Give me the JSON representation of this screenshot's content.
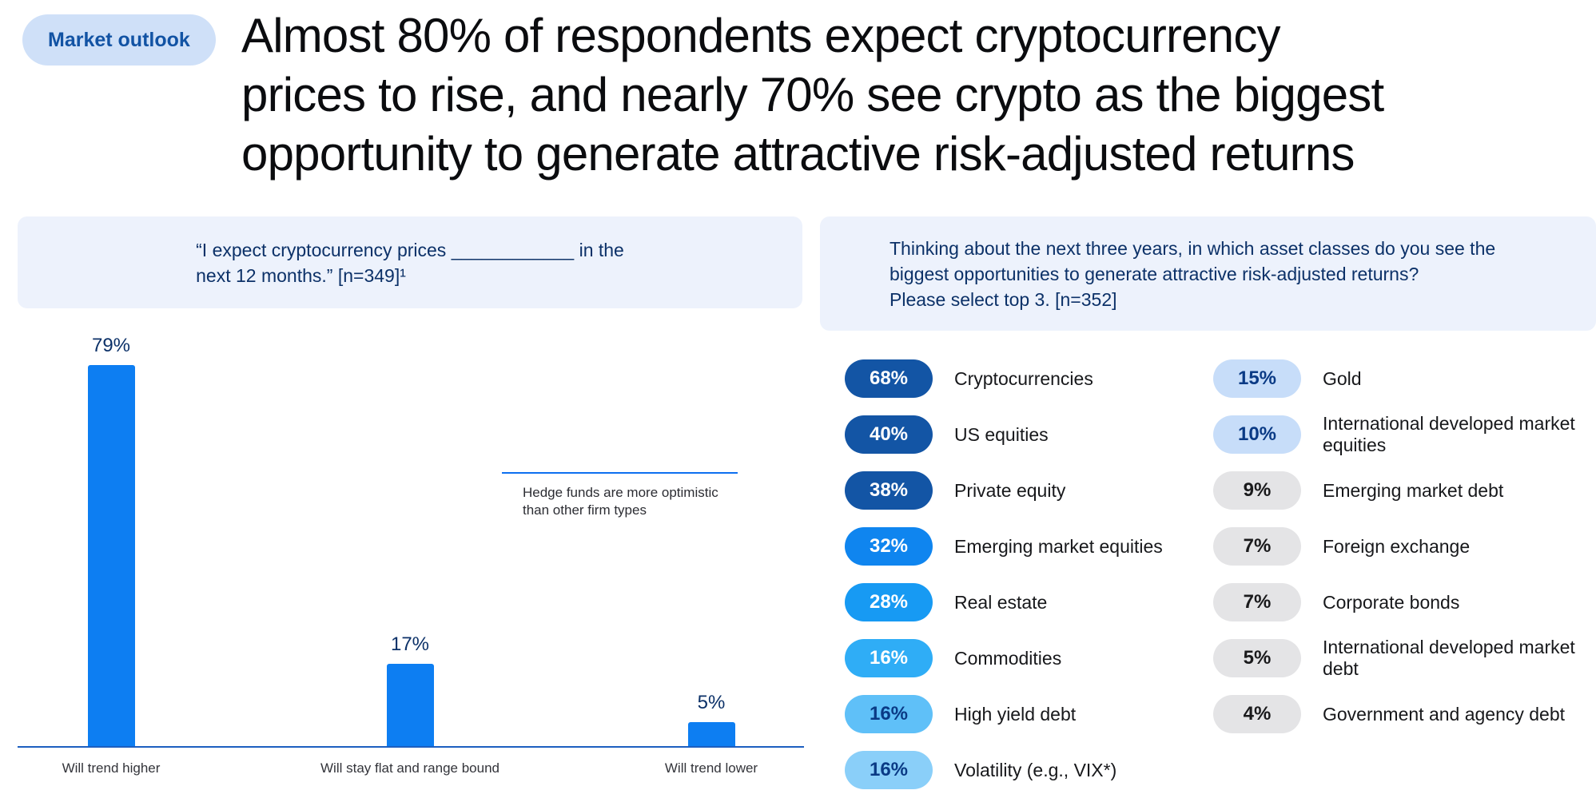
{
  "badge": {
    "label": "Market outlook"
  },
  "headline": {
    "lines": [
      "Almost 80% of respondents expect cryptocurrency",
      "prices to rise, and nearly 70% see crypto as the biggest",
      "opportunity to generate attractive risk-adjusted returns"
    ]
  },
  "left_panel": {
    "question_lines": [
      "“I expect cryptocurrency prices ____________ in the",
      "next 12 months.” [n=349]¹"
    ],
    "bars": [
      {
        "label": "Will trend higher",
        "value": 79,
        "value_label": "79%"
      },
      {
        "label": "Will stay flat and range bound",
        "value": 17,
        "value_label": "17%"
      },
      {
        "label": "Will trend lower",
        "value": 5,
        "value_label": "5%"
      }
    ],
    "annotation_lines": [
      "Hedge funds are more optimistic",
      "than other firm types"
    ]
  },
  "right_panel": {
    "question_lines": [
      "Thinking about the next three years, in which asset classes do you see the",
      "biggest opportunities to generate attractive risk-adjusted returns?",
      "Please select top 3. [n=352]"
    ],
    "columns": [
      [
        {
          "pct": "68%",
          "label": "Cryptocurrencies",
          "bg": "#1355a5",
          "fg": "#ffffff"
        },
        {
          "pct": "40%",
          "label": "US equities",
          "bg": "#1355a5",
          "fg": "#ffffff"
        },
        {
          "pct": "38%",
          "label": "Private equity",
          "bg": "#1355a5",
          "fg": "#ffffff"
        },
        {
          "pct": "32%",
          "label": "Emerging market equities",
          "bg": "#0f85ef",
          "fg": "#ffffff"
        },
        {
          "pct": "28%",
          "label": "Real estate",
          "bg": "#179af3",
          "fg": "#ffffff"
        },
        {
          "pct": "16%",
          "label": "Commodities",
          "bg": "#2fadf6",
          "fg": "#ffffff"
        },
        {
          "pct": "16%",
          "label": "High yield debt",
          "bg": "#5fc0f8",
          "fg": "#0a3a85"
        },
        {
          "pct": "16%",
          "label": "Volatility (e.g., VIX*)",
          "bg": "#8acff9",
          "fg": "#0a3a85"
        }
      ],
      [
        {
          "pct": "15%",
          "label": "Gold",
          "bg": "#c7ddf9",
          "fg": "#0a3a85"
        },
        {
          "pct": "10%",
          "label": "International developed market equities",
          "bg": "#c7ddf9",
          "fg": "#0a3a85"
        },
        {
          "pct": "9%",
          "label": "Emerging market debt",
          "bg": "#e4e4e6",
          "fg": "#1a1a1c"
        },
        {
          "pct": "7%",
          "label": "Foreign exchange",
          "bg": "#e4e4e6",
          "fg": "#1a1a1c"
        },
        {
          "pct": "7%",
          "label": "Corporate bonds",
          "bg": "#e4e4e6",
          "fg": "#1a1a1c"
        },
        {
          "pct": "5%",
          "label": "International developed market debt",
          "bg": "#e4e4e6",
          "fg": "#1a1a1c"
        },
        {
          "pct": "4%",
          "label": "Government and agency debt",
          "bg": "#e4e4e6",
          "fg": "#1a1a1c"
        }
      ]
    ]
  },
  "colors": {
    "badge_bg": "#cfe0f8",
    "badge_fg": "#1253a4",
    "headline": "#0b0c0f",
    "qbox_bg": "#edf2fc",
    "qtext": "#0c3168",
    "bar": "#0d7ef2",
    "axis": "#1d5fc0",
    "annot_line": "#0d6ff0",
    "catlabel": "#33343a"
  },
  "chart_data": [
    {
      "type": "bar",
      "title": "“I expect cryptocurrency prices ____________ in the next 12 months.” [n=349]¹",
      "categories": [
        "Will trend higher",
        "Will stay flat and range bound",
        "Will trend lower"
      ],
      "values": [
        79,
        17,
        5
      ],
      "unit": "percent",
      "ylim": [
        0,
        100
      ],
      "grid": false,
      "legend": "none",
      "annotation": "Hedge funds are more optimistic than other firm types",
      "bar_color": "#0d7ef2"
    },
    {
      "type": "table",
      "title": "Thinking about the next three years, in which asset classes do you see the biggest opportunities to generate attractive risk-adjusted returns? Please select top 3. [n=352]",
      "categories": [
        "Cryptocurrencies",
        "US equities",
        "Private equity",
        "Emerging market equities",
        "Real estate",
        "Commodities",
        "High yield debt",
        "Volatility (e.g., VIX*)",
        "Gold",
        "International developed market equities",
        "Emerging market debt",
        "Foreign exchange",
        "Corporate bonds",
        "International developed market debt",
        "Government and agency debt"
      ],
      "values": [
        68,
        40,
        38,
        32,
        28,
        16,
        16,
        16,
        15,
        10,
        9,
        7,
        7,
        5,
        4
      ],
      "unit": "percent"
    }
  ]
}
